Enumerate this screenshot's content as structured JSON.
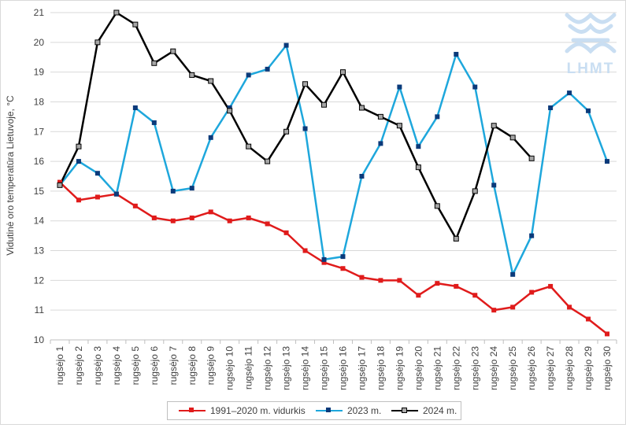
{
  "chart_data": {
    "type": "line",
    "categories": [
      "rugsėjo 1",
      "rugsėjo 2",
      "rugsėjo 3",
      "rugsėjo 4",
      "rugsėjo 5",
      "rugsėjo 6",
      "rugsėjo 7",
      "rugsėjo 8",
      "rugsėjo 9",
      "rugsėjo 10",
      "rugsėjo 11",
      "rugsėjo 12",
      "rugsėjo 13",
      "rugsėjo 14",
      "rugsėjo 15",
      "rugsėjo 16",
      "rugsėjo 17",
      "rugsėjo 18",
      "rugsėjo 19",
      "rugsėjo 20",
      "rugsėjo 21",
      "rugsėjo 22",
      "rugsėjo 23",
      "rugsėjo 24",
      "rugsėjo 25",
      "rugsėjo 26",
      "rugsėjo 27",
      "rugsėjo 28",
      "rugsėjo 29",
      "rugsėjo 30"
    ],
    "ylabel": "Vidutinė oro temperatūra Lietuvoje, °C",
    "ylim": [
      10,
      21
    ],
    "yticks": [
      10,
      11,
      12,
      13,
      14,
      15,
      16,
      17,
      18,
      19,
      20,
      21
    ],
    "grid": true,
    "legend_position": "bottom",
    "series": [
      {
        "name": "1991–2020 m. vidurkis",
        "color": "#e01b1b",
        "values": [
          15.3,
          14.7,
          14.8,
          14.9,
          14.5,
          14.1,
          14.0,
          14.1,
          14.3,
          14.0,
          14.1,
          13.9,
          13.6,
          13.0,
          12.6,
          12.4,
          12.1,
          12.0,
          12.0,
          11.5,
          11.9,
          11.8,
          11.5,
          11.0,
          11.1,
          11.6,
          11.8,
          11.1,
          10.7,
          10.2
        ]
      },
      {
        "name": "2023 m.",
        "color": "#1ea7dc",
        "values": [
          15.2,
          16.0,
          15.6,
          14.9,
          17.8,
          17.3,
          15.0,
          15.1,
          16.8,
          17.8,
          18.9,
          19.1,
          19.9,
          17.1,
          12.7,
          12.8,
          15.5,
          16.6,
          18.5,
          16.5,
          17.5,
          19.6,
          18.5,
          15.2,
          12.2,
          13.5,
          17.8,
          18.3,
          17.7,
          16.0
        ]
      },
      {
        "name": "2024 m.",
        "color": "#000000",
        "values": [
          15.2,
          16.5,
          20.0,
          21.0,
          20.6,
          19.3,
          19.7,
          18.9,
          18.7,
          17.7,
          16.5,
          16.0,
          17.0,
          18.6,
          17.9,
          19.0,
          17.8,
          17.5,
          17.2,
          15.8,
          14.5,
          13.4,
          15.0,
          17.2,
          16.8,
          16.1,
          null,
          null,
          null,
          null
        ]
      }
    ]
  },
  "logo": {
    "text": "LHMT",
    "color": "#c9def2"
  }
}
